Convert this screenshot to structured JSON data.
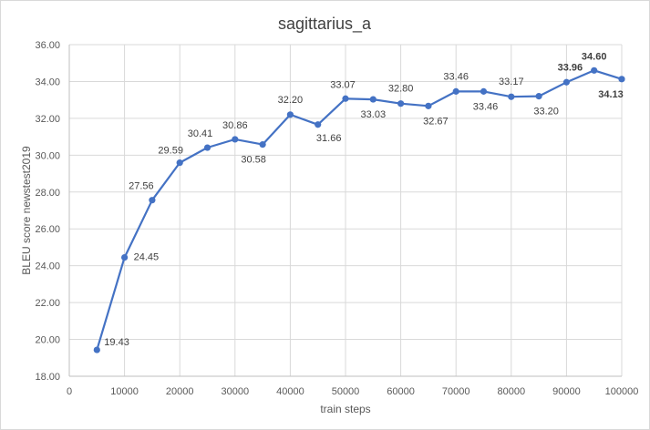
{
  "chart_data": {
    "type": "line",
    "title": "sagittarius_a",
    "xlabel": "train steps",
    "ylabel": "BLEU  score newstest2019",
    "xlim": [
      0,
      100000
    ],
    "ylim": [
      18,
      36
    ],
    "x_ticks": [
      "0",
      "10000",
      "20000",
      "30000",
      "40000",
      "50000",
      "60000",
      "70000",
      "80000",
      "90000",
      "100000"
    ],
    "y_ticks": [
      "18.00",
      "20.00",
      "22.00",
      "24.00",
      "26.00",
      "28.00",
      "30.00",
      "32.00",
      "34.00",
      "36.00"
    ],
    "grid": true,
    "color": "#4472c4",
    "x": [
      5000,
      10000,
      15000,
      20000,
      25000,
      30000,
      35000,
      40000,
      45000,
      50000,
      55000,
      60000,
      65000,
      70000,
      75000,
      80000,
      85000,
      90000,
      95000,
      100000
    ],
    "values": [
      19.43,
      24.45,
      27.56,
      29.59,
      30.41,
      30.86,
      30.58,
      32.2,
      31.66,
      33.07,
      33.03,
      32.8,
      32.67,
      33.46,
      33.46,
      33.17,
      33.2,
      33.96,
      34.6,
      34.13
    ],
    "labels": [
      "19.43",
      "24.45",
      "27.56",
      "29.59",
      "30.41",
      "30.86",
      "30.58",
      "32.20",
      "31.66",
      "33.07",
      "33.03",
      "32.80",
      "32.67",
      "33.46",
      "33.46",
      "33.17",
      "33.20",
      "33.96",
      "34.60",
      "34.13"
    ],
    "bold_labels": [
      "33.96",
      "34.60",
      "34.13"
    ]
  }
}
